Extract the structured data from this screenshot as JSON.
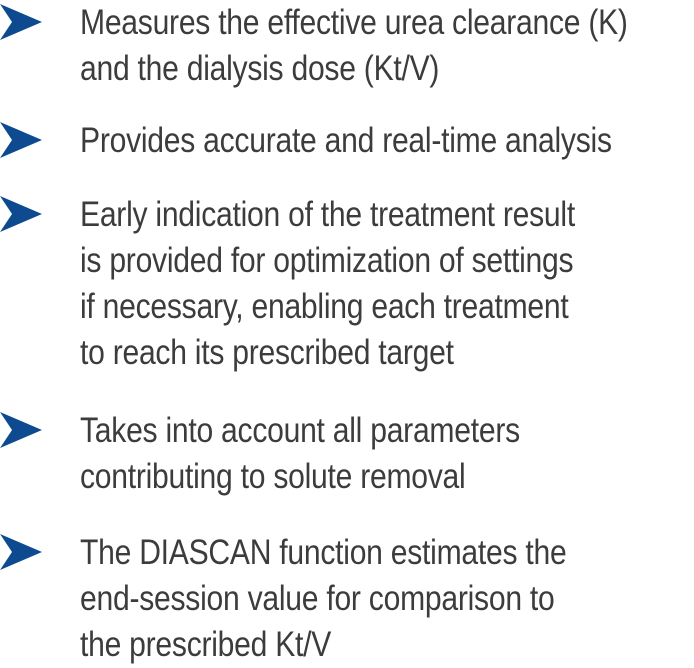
{
  "colors": {
    "bullet": "#0d4a8f",
    "text": "#3c3c3c",
    "background": "#ffffff"
  },
  "bullet_icon": "arrowhead-bullet-icon",
  "features": [
    {
      "lines": [
        "Measures the effective urea clearance (K)",
        "and the dialysis dose (Kt/V)"
      ]
    },
    {
      "lines": [
        "Provides accurate and real-time analysis"
      ]
    },
    {
      "lines": [
        "Early indication of the treatment result",
        "is provided for optimization of settings",
        "if necessary, enabling each treatment",
        "to reach its prescribed target"
      ]
    },
    {
      "lines": [
        "Takes into account all parameters",
        "contributing to solute removal"
      ]
    },
    {
      "lines": [
        "The DIASCAN function estimates the",
        "end-session value for comparison to",
        "the prescribed Kt/V"
      ]
    }
  ]
}
